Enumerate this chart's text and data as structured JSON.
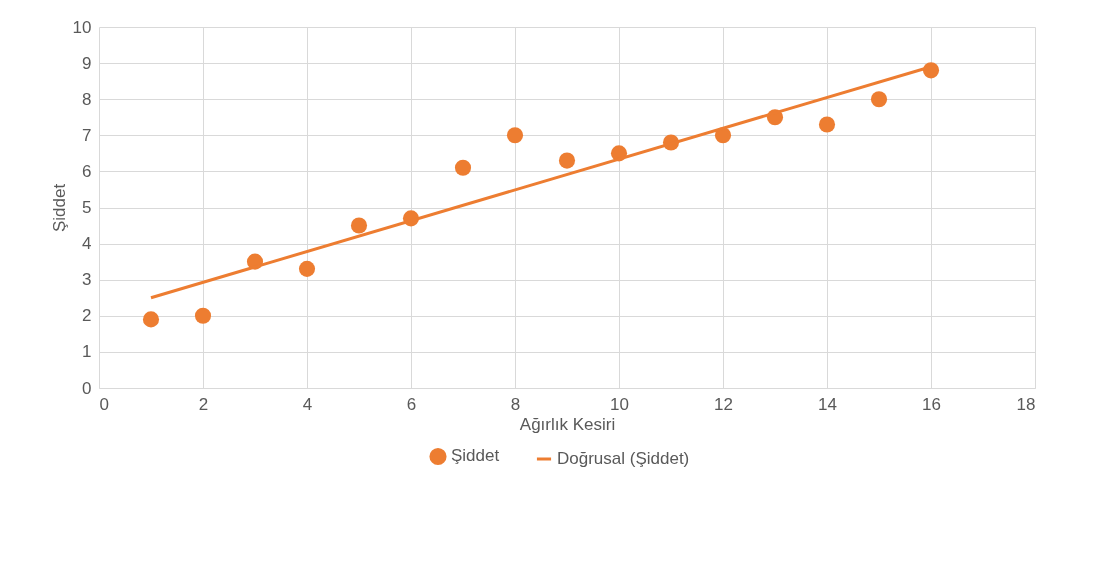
{
  "chart_data": {
    "type": "scatter",
    "xlabel": "Ağırlık Kesiri",
    "ylabel": "Şiddet",
    "x": [
      1,
      2,
      3,
      4,
      5,
      6,
      7,
      8,
      9,
      10,
      11,
      12,
      13,
      14,
      15,
      16
    ],
    "series": [
      {
        "name": "Şiddet",
        "color": "#ed7d31",
        "marker": "circle",
        "values": [
          1.9,
          2.0,
          3.5,
          3.3,
          4.5,
          4.7,
          6.1,
          7.0,
          6.3,
          6.5,
          6.8,
          7.0,
          7.5,
          7.3,
          8.0,
          8.8
        ]
      },
      {
        "name": "Doğrusal (Şiddet)",
        "color": "#ed7d31",
        "type": "line",
        "marker": "none",
        "line_style": "solid",
        "x": [
          1,
          16
        ],
        "values": [
          2.5,
          8.9
        ]
      }
    ],
    "xlim": [
      0,
      18
    ],
    "xticks": [
      0,
      2,
      4,
      6,
      8,
      10,
      12,
      14,
      16,
      18
    ],
    "ylim": [
      0,
      10
    ],
    "yticks": [
      0,
      1,
      2,
      3,
      4,
      5,
      6,
      7,
      8,
      9,
      10
    ],
    "grid": true,
    "legend": "bottom"
  }
}
